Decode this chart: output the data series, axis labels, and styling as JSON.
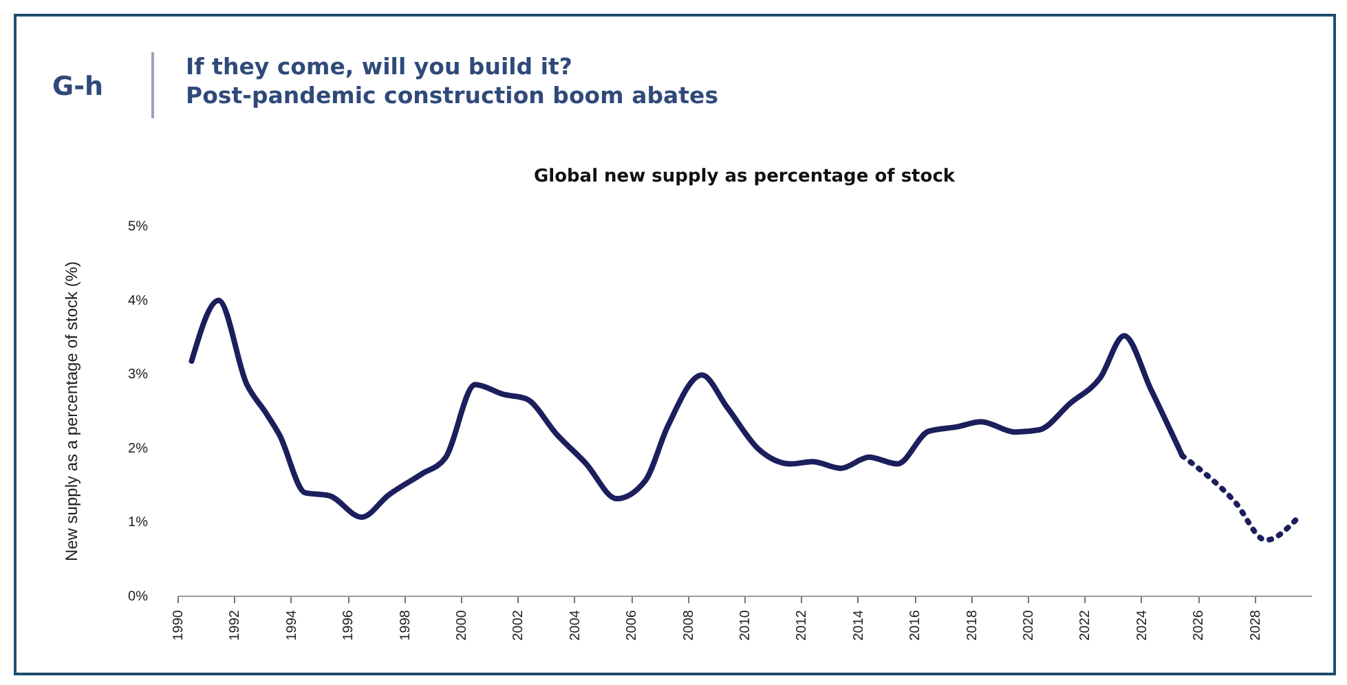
{
  "chart_data": {
    "type": "line",
    "title": "If they come, will you build it?\nPost-pandemic construction boom abates",
    "subtitle": "Global new supply as percentage of stock",
    "annotations": [
      "G-h"
    ],
    "ylabel": "New supply as a percentage of stock (%)",
    "xlim": [
      1990,
      2030
    ],
    "xticks": [
      1990,
      1992,
      1994,
      1996,
      1998,
      2000,
      2002,
      2004,
      2006,
      2008,
      2010,
      2012,
      2014,
      2016,
      2018,
      2020,
      2022,
      2024,
      2026,
      2028
    ],
    "ylim": [
      0,
      5
    ],
    "yticks": [
      {
        "value": 0,
        "label": "0%"
      },
      {
        "value": 1,
        "label": "1%"
      },
      {
        "value": 2,
        "label": "2%"
      },
      {
        "value": 3,
        "label": "3%"
      },
      {
        "value": 4,
        "label": "4%"
      },
      {
        "value": 5,
        "label": "5%"
      }
    ],
    "grid": false,
    "marker": "none",
    "series": [
      {
        "color": "#1b1f5c",
        "line_style": "solid",
        "x": [
          1990.5,
          1991.45,
          1992.45,
          1993.1,
          1993.6,
          1994.5,
          1995.35,
          1996.5,
          1997.45,
          1998.6,
          1999.45,
          2000.5,
          2001.5,
          2002.3,
          2003.4,
          2004.4,
          2005.5,
          2006.5,
          2007.3,
          2008.5,
          2009.4,
          2010.5,
          2011.65,
          2012.4,
          2013.4,
          2014.4,
          2015.4,
          2016.5,
          2017.5,
          2018.35,
          2019.55,
          2020.4,
          2021.5,
          2022.55,
          2023.4,
          2024.35,
          2025.45
        ],
        "values": [
          3.17,
          3.99,
          2.85,
          2.48,
          2.17,
          1.39,
          1.35,
          1.06,
          1.36,
          1.64,
          1.86,
          2.85,
          2.72,
          2.66,
          2.17,
          1.79,
          1.31,
          1.55,
          2.29,
          2.98,
          2.54,
          1.98,
          1.78,
          1.81,
          1.72,
          1.87,
          1.78,
          2.22,
          2.28,
          2.35,
          2.21,
          2.24,
          2.6,
          2.94,
          3.51,
          2.78,
          1.89
        ]
      },
      {
        "color": "#1b1f5c",
        "line_style": "dotted",
        "x": [
          2025.45,
          2027.3,
          2028.4,
          2029.45
        ],
        "values": [
          1.89,
          1.27,
          0.75,
          1.02
        ]
      }
    ]
  }
}
